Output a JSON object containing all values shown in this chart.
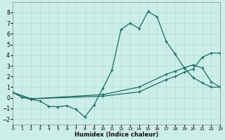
{
  "xlabel": "Humidex (Indice chaleur)",
  "xlim": [
    0,
    23
  ],
  "ylim": [
    -2.5,
    9.0
  ],
  "yticks": [
    -2,
    -1,
    0,
    1,
    2,
    3,
    4,
    5,
    6,
    7,
    8
  ],
  "xticks": [
    0,
    1,
    2,
    3,
    4,
    5,
    6,
    7,
    8,
    9,
    10,
    11,
    12,
    13,
    14,
    15,
    16,
    17,
    18,
    19,
    20,
    21,
    22,
    23
  ],
  "bg_color": "#cceee8",
  "grid_color": "#aaddda",
  "line_color": "#1a6b5e",
  "line1_x": [
    0,
    1,
    2,
    3,
    4,
    5,
    6,
    7,
    8,
    9,
    10,
    11,
    12,
    13,
    14,
    15,
    16,
    17,
    18,
    19,
    20,
    21,
    22,
    23
  ],
  "line1_y": [
    0.5,
    0.05,
    -0.15,
    -0.3,
    -0.8,
    -0.85,
    -0.75,
    -1.1,
    -1.8,
    -0.7,
    0.9,
    2.6,
    6.4,
    7.0,
    6.5,
    8.1,
    7.6,
    5.3,
    4.1,
    2.8,
    1.9,
    1.4,
    1.0,
    1.0
  ],
  "line2_x": [
    0,
    2,
    10,
    14,
    17,
    18,
    19,
    20,
    21,
    22,
    23
  ],
  "line2_y": [
    0.5,
    -0.1,
    0.3,
    1.0,
    2.2,
    2.5,
    2.8,
    3.1,
    2.8,
    1.5,
    1.0
  ],
  "line3_x": [
    0,
    2,
    10,
    14,
    17,
    18,
    19,
    20,
    21,
    22,
    23
  ],
  "line3_y": [
    0.5,
    -0.1,
    0.15,
    0.55,
    1.7,
    2.0,
    2.4,
    2.7,
    3.8,
    4.2,
    4.2
  ]
}
